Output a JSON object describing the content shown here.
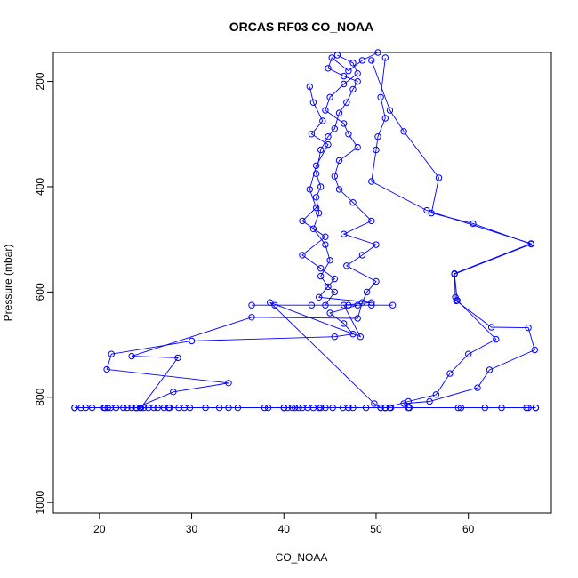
{
  "chart_data": {
    "type": "line",
    "title": "ORCAS RF03 CO_NOAA",
    "xlabel": "CO_NOAA",
    "ylabel": "Pressure (mbar)",
    "xlim": [
      15,
      69
    ],
    "ylim": [
      1020,
      145
    ],
    "y_reversed": true,
    "grid": false,
    "x_ticks": [
      20,
      30,
      40,
      50,
      60
    ],
    "y_ticks": [
      200,
      400,
      600,
      800,
      1000
    ],
    "series_color": "#0000ff",
    "marker": "open-circle",
    "series": [
      {
        "points": [
          [
            50.2,
            145
          ],
          [
            48.5,
            160
          ],
          [
            47.0,
            180
          ],
          [
            45.2,
            155
          ],
          [
            44.8,
            175
          ],
          [
            46.5,
            190
          ],
          [
            48.0,
            200
          ],
          [
            47.5,
            215
          ],
          [
            46.8,
            240
          ],
          [
            46.0,
            260
          ],
          [
            45.5,
            290
          ],
          [
            44.8,
            305
          ],
          [
            44.0,
            330
          ],
          [
            43.5,
            375
          ],
          [
            44.0,
            400
          ],
          [
            43.5,
            420
          ],
          [
            43.8,
            450
          ],
          [
            43.2,
            480
          ],
          [
            44.5,
            510
          ],
          [
            45.0,
            540
          ],
          [
            44.0,
            570
          ],
          [
            44.8,
            590
          ],
          [
            45.5,
            600
          ],
          [
            44.5,
            625
          ],
          [
            43.0,
            625
          ],
          [
            36.5,
            625
          ],
          [
            39.0,
            625
          ],
          [
            47.0,
            625
          ],
          [
            49.5,
            625
          ],
          [
            51.8,
            625
          ],
          [
            48.0,
            625
          ],
          [
            45.0,
            640
          ],
          [
            46.5,
            660
          ],
          [
            47.5,
            680
          ],
          [
            45.5,
            685
          ],
          [
            30.0,
            693
          ],
          [
            21.3,
            718
          ],
          [
            20.8,
            747
          ],
          [
            34.0,
            773
          ],
          [
            28.0,
            790
          ],
          [
            24.0,
            820
          ]
        ]
      },
      {
        "points": [
          [
            45.8,
            150
          ],
          [
            47.5,
            165
          ],
          [
            48.0,
            185
          ],
          [
            46.5,
            205
          ],
          [
            45.0,
            230
          ],
          [
            44.5,
            255
          ],
          [
            46.5,
            280
          ],
          [
            47.0,
            300
          ],
          [
            48.0,
            325
          ],
          [
            46.0,
            350
          ],
          [
            45.5,
            380
          ],
          [
            46.0,
            405
          ],
          [
            47.5,
            430
          ],
          [
            49.5,
            465
          ],
          [
            46.5,
            490
          ],
          [
            50.0,
            510
          ],
          [
            48.5,
            530
          ],
          [
            46.8,
            550
          ],
          [
            50.0,
            580
          ],
          [
            49.0,
            600
          ],
          [
            48.5,
            620
          ],
          [
            48.0,
            650
          ],
          [
            36.5,
            648
          ],
          [
            23.5,
            722
          ],
          [
            28.5,
            725
          ],
          [
            24.5,
            820
          ],
          [
            35.0,
            820
          ],
          [
            44.0,
            820
          ],
          [
            51.0,
            820
          ]
        ]
      },
      {
        "points": [
          [
            51.0,
            155
          ],
          [
            50.5,
            230
          ],
          [
            51.0,
            270
          ],
          [
            50.2,
            305
          ],
          [
            50.0,
            330
          ],
          [
            49.5,
            390
          ],
          [
            55.5,
            445
          ],
          [
            66.8,
            508
          ],
          [
            58.5,
            565
          ],
          [
            58.6,
            610
          ],
          [
            58.7,
            617
          ],
          [
            62.5,
            667
          ],
          [
            66.5,
            668
          ],
          [
            67.2,
            710
          ],
          [
            62.3,
            748
          ],
          [
            61.0,
            782
          ],
          [
            55.8,
            808
          ],
          [
            53.0,
            812
          ],
          [
            53.5,
            820
          ],
          [
            66.5,
            820
          ],
          [
            67.3,
            820
          ]
        ]
      },
      {
        "points": [
          [
            49.5,
            160
          ],
          [
            51.5,
            255
          ],
          [
            53.0,
            295
          ],
          [
            56.8,
            383
          ],
          [
            56.0,
            450
          ],
          [
            60.5,
            470
          ],
          [
            66.8,
            509
          ],
          [
            58.5,
            566
          ],
          [
            58.8,
            616
          ],
          [
            63.0,
            690
          ],
          [
            60.0,
            718
          ],
          [
            58.0,
            755
          ],
          [
            56.5,
            795
          ],
          [
            53.5,
            808
          ],
          [
            51.0,
            820
          ],
          [
            47.0,
            820
          ],
          [
            40.0,
            820
          ],
          [
            33.0,
            820
          ],
          [
            27.5,
            820
          ],
          [
            24.0,
            820
          ],
          [
            20.5,
            820
          ],
          [
            17.3,
            820
          ]
        ]
      },
      {
        "points": [
          [
            42.8,
            210
          ],
          [
            43.2,
            240
          ],
          [
            44.2,
            275
          ],
          [
            43.0,
            300
          ],
          [
            44.8,
            320
          ],
          [
            43.5,
            360
          ],
          [
            42.8,
            405
          ],
          [
            43.5,
            440
          ],
          [
            42.0,
            465
          ],
          [
            44.5,
            495
          ],
          [
            42.0,
            530
          ],
          [
            44.0,
            555
          ],
          [
            45.5,
            575
          ],
          [
            43.8,
            610
          ],
          [
            49.5,
            620
          ],
          [
            46.5,
            625
          ],
          [
            48.3,
            685
          ],
          [
            38.5,
            620
          ],
          [
            49.8,
            812
          ],
          [
            50.5,
            820
          ],
          [
            51.5,
            820
          ]
        ]
      }
    ],
    "bottom_row": {
      "y": 820,
      "x": [
        17.3,
        18.0,
        18.5,
        19.2,
        20.6,
        20.9,
        21.2,
        21.8,
        22.6,
        23.0,
        23.5,
        24.0,
        24.4,
        24.8,
        25.3,
        25.9,
        26.3,
        27.0,
        27.6,
        28.6,
        29.2,
        29.8,
        31.5,
        34.0,
        37.9,
        38.3,
        40.0,
        40.4,
        40.9,
        41.2,
        41.6,
        42.0,
        42.6,
        43.2,
        43.8,
        44.5,
        45.3,
        46.4,
        47.5,
        48.9,
        50.5,
        51.0,
        51.6,
        53.6,
        58.9,
        59.2,
        61.8,
        63.6,
        66.3,
        67.3
      ]
    }
  }
}
